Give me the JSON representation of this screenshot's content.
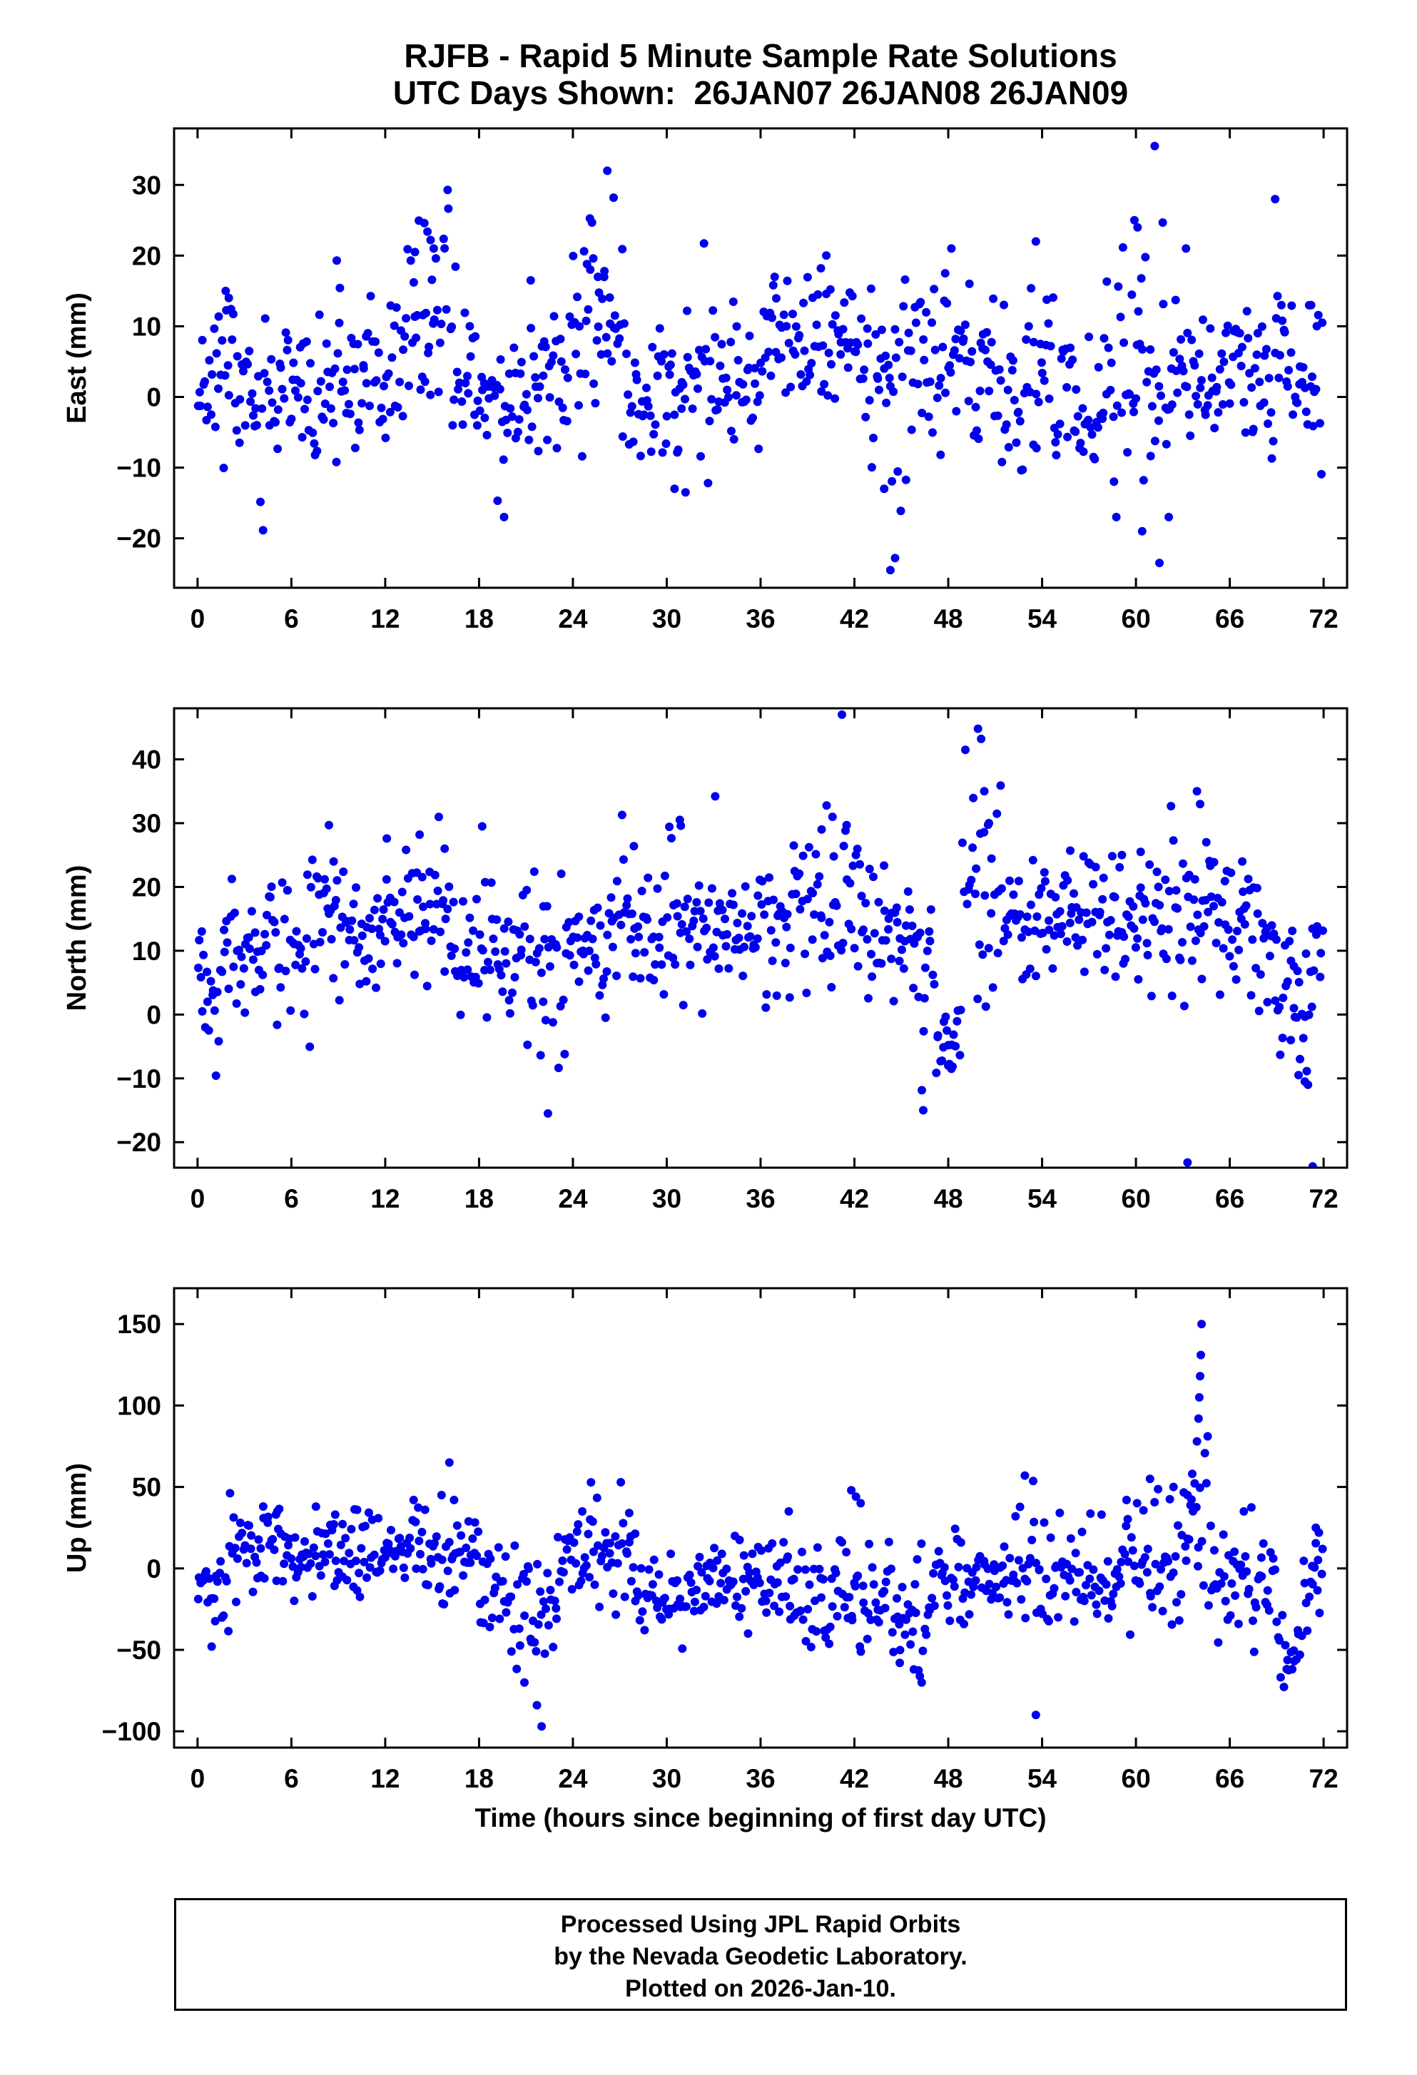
{
  "title": {
    "line1": "RJFB - Rapid 5 Minute Sample Rate Solutions",
    "line2": "UTC Days Shown:  26JAN07 26JAN08 26JAN09"
  },
  "footer": {
    "line1": "Processed Using JPL Rapid Orbits",
    "line2": "by the Nevada Geodetic Laboratory.",
    "line3": "Plotted on 2026-Jan-10."
  },
  "point_color": "#0000ee",
  "frame_color": "#000000",
  "chart_data": {
    "type": "scatter",
    "title": "RJFB - Rapid 5 Minute Sample Rate Solutions",
    "subtitle": "UTC Days Shown:  26JAN07 26JAN08 26JAN09",
    "legend": "none",
    "grid": false,
    "x_axis": {
      "label": "Time (hours since beginning of first day UTC)",
      "lim": [
        -1.5,
        73.5
      ],
      "ticks": [
        0,
        6,
        12,
        18,
        24,
        30,
        36,
        42,
        48,
        54,
        60,
        66,
        72
      ]
    },
    "panels": [
      {
        "ylabel": "East (mm)",
        "ylim": [
          -27,
          38
        ],
        "yticks": [
          -20,
          -10,
          0,
          10,
          20,
          30
        ],
        "scatter": {
          "seed": 11,
          "n": 800,
          "base": [
            2,
            5
          ],
          "segments": [
            [
              0,
              2.5,
              4,
              6
            ],
            [
              2.5,
              9,
              0,
              5
            ],
            [
              9,
              13,
              2,
              5
            ],
            [
              13,
              16.5,
              9,
              7
            ],
            [
              16.5,
              18.5,
              4,
              5
            ],
            [
              18.5,
              21.5,
              -1,
              6
            ],
            [
              21.5,
              24,
              3,
              5
            ],
            [
              24,
              27.5,
              9,
              7
            ],
            [
              27.5,
              33,
              1,
              6
            ],
            [
              33,
              36,
              2,
              5
            ],
            [
              36,
              42.5,
              7,
              5
            ],
            [
              42.5,
              45.5,
              2,
              8
            ],
            [
              45.5,
              49.5,
              7,
              6
            ],
            [
              49.5,
              56,
              2,
              6
            ],
            [
              56,
              58,
              -1,
              5
            ],
            [
              58,
              62.5,
              4,
              9
            ],
            [
              62.5,
              67,
              3,
              5
            ],
            [
              67,
              72,
              3,
              6
            ]
          ]
        },
        "outliers": [
          [
            1.8,
            15
          ],
          [
            2.0,
            14
          ],
          [
            8.9,
            19.3
          ],
          [
            13.9,
            20.5
          ],
          [
            14.5,
            24.6
          ],
          [
            14.7,
            23.4
          ],
          [
            14.9,
            22.2
          ],
          [
            15.1,
            21
          ],
          [
            19.6,
            -17
          ],
          [
            21.3,
            16.5
          ],
          [
            24.9,
            18.8
          ],
          [
            25.3,
            19.6
          ],
          [
            25.6,
            17
          ],
          [
            26.2,
            32
          ],
          [
            26.6,
            28.2
          ],
          [
            30.5,
            -13
          ],
          [
            31.2,
            -13.5
          ],
          [
            36.9,
            17
          ],
          [
            40.2,
            20
          ],
          [
            43.9,
            -13
          ],
          [
            44.3,
            -24.5
          ],
          [
            44.6,
            -22.8
          ],
          [
            47.8,
            17.5
          ],
          [
            48.2,
            21
          ],
          [
            53.6,
            22
          ],
          [
            59.9,
            25
          ],
          [
            60.1,
            24
          ],
          [
            60.4,
            -19
          ],
          [
            61.2,
            35.5
          ],
          [
            61.5,
            -23.5
          ],
          [
            62.1,
            -17
          ],
          [
            63.2,
            21
          ],
          [
            68.9,
            28
          ],
          [
            69.3,
            13
          ],
          [
            71.2,
            13
          ]
        ]
      },
      {
        "ylabel": "North (mm)",
        "ylim": [
          -24,
          48
        ],
        "yticks": [
          -20,
          -10,
          0,
          10,
          20,
          30,
          40
        ],
        "scatter": {
          "seed": 22,
          "n": 800,
          "base": [
            12,
            5
          ],
          "segments": [
            [
              0,
              1.5,
              6,
              5
            ],
            [
              1.5,
              7,
              11,
              5
            ],
            [
              7,
              9.5,
              15,
              6
            ],
            [
              9.5,
              13,
              12,
              4
            ],
            [
              13,
              16.5,
              15,
              6
            ],
            [
              16.5,
              21,
              11,
              5
            ],
            [
              21,
              23.5,
              8,
              7
            ],
            [
              23.5,
              27,
              12,
              5
            ],
            [
              27,
              29.5,
              14,
              6
            ],
            [
              29.5,
              38,
              13,
              5
            ],
            [
              38,
              42.5,
              19,
              6
            ],
            [
              42.5,
              46,
              13,
              5
            ],
            [
              46,
              47.2,
              8,
              6
            ],
            [
              47.2,
              48.8,
              -4,
              3
            ],
            [
              48.8,
              51.5,
              20,
              9
            ],
            [
              51.5,
              55,
              14,
              5
            ],
            [
              55,
              60,
              16,
              5
            ],
            [
              60,
              62,
              12,
              6
            ],
            [
              62,
              65.5,
              17,
              7
            ],
            [
              65.5,
              69,
              13,
              5
            ],
            [
              69,
              71.5,
              4,
              7
            ],
            [
              71.5,
              72,
              10,
              4
            ]
          ]
        },
        "outliers": [
          [
            0.3,
            0.5
          ],
          [
            8.4,
            29.7
          ],
          [
            8.7,
            24
          ],
          [
            12.1,
            27.6
          ],
          [
            14.2,
            28.2
          ],
          [
            15.8,
            26
          ],
          [
            18.2,
            29.5
          ],
          [
            22.1,
            2
          ],
          [
            22.4,
            -15.5
          ],
          [
            27.9,
            26.4
          ],
          [
            30.9,
            29.6
          ],
          [
            33.1,
            34.2
          ],
          [
            39.9,
            29
          ],
          [
            40.6,
            31
          ],
          [
            41.2,
            47
          ],
          [
            41.5,
            29.7
          ],
          [
            46.4,
            -15
          ],
          [
            48.0,
            -8
          ],
          [
            48.2,
            -8.5
          ],
          [
            49.9,
            44.8
          ],
          [
            50.1,
            43.2
          ],
          [
            50.3,
            35
          ],
          [
            50.6,
            30
          ],
          [
            55.8,
            25.7
          ],
          [
            59.1,
            25
          ],
          [
            60.3,
            25.5
          ],
          [
            63.3,
            -23.2
          ],
          [
            63.9,
            35
          ],
          [
            64.1,
            33
          ],
          [
            64.5,
            27
          ],
          [
            66.8,
            24
          ],
          [
            69.9,
            -4
          ],
          [
            70.1,
            1
          ],
          [
            70.4,
            -9.5
          ],
          [
            70.8,
            -10.5
          ],
          [
            71.0,
            -11
          ],
          [
            71.3,
            -23.8
          ]
        ]
      },
      {
        "ylabel": "Up (mm)",
        "ylim": [
          -110,
          172
        ],
        "yticks": [
          -100,
          -50,
          0,
          50,
          100,
          150
        ],
        "scatter": {
          "seed": 33,
          "n": 800,
          "base": [
            -5,
            16
          ],
          "segments": [
            [
              0,
              2,
              -12,
              12
            ],
            [
              2,
              6,
              12,
              14
            ],
            [
              6,
              12,
              8,
              13
            ],
            [
              12,
              15,
              8,
              15
            ],
            [
              15,
              18,
              2,
              16
            ],
            [
              18,
              19.5,
              -10,
              15
            ],
            [
              19.5,
              23,
              -28,
              20
            ],
            [
              23,
              26,
              2,
              16
            ],
            [
              26,
              28,
              8,
              15
            ],
            [
              28,
              31.5,
              -18,
              14
            ],
            [
              31.5,
              38,
              -8,
              14
            ],
            [
              38,
              40,
              -12,
              14
            ],
            [
              40,
              43,
              -15,
              18
            ],
            [
              43,
              47,
              -25,
              18
            ],
            [
              47,
              52,
              -8,
              16
            ],
            [
              52,
              56,
              -4,
              18
            ],
            [
              56,
              59,
              -8,
              15
            ],
            [
              59,
              63,
              5,
              18
            ],
            [
              63,
              64.6,
              25,
              25
            ],
            [
              64.6,
              68.9,
              -5,
              15
            ],
            [
              68.9,
              70.7,
              -52,
              12
            ],
            [
              70.7,
              72,
              -5,
              14
            ]
          ]
        },
        "outliers": [
          [
            0.9,
            -48
          ],
          [
            4.2,
            38
          ],
          [
            5.1,
            35
          ],
          [
            8.8,
            33
          ],
          [
            10.2,
            36
          ],
          [
            15.6,
            45
          ],
          [
            16.1,
            65
          ],
          [
            16.4,
            42
          ],
          [
            20.9,
            -70
          ],
          [
            21.7,
            -84
          ],
          [
            22.0,
            -97
          ],
          [
            24.6,
            35
          ],
          [
            25.1,
            30
          ],
          [
            27.6,
            34
          ],
          [
            35.2,
            -40
          ],
          [
            37.8,
            35
          ],
          [
            41.8,
            48
          ],
          [
            42.1,
            44
          ],
          [
            42.4,
            40
          ],
          [
            44.9,
            -58
          ],
          [
            45.8,
            -62
          ],
          [
            46.3,
            -70
          ],
          [
            52.9,
            57
          ],
          [
            53.6,
            -90
          ],
          [
            57.8,
            33
          ],
          [
            59.4,
            42
          ],
          [
            60.9,
            55
          ],
          [
            62.4,
            50
          ],
          [
            63.3,
            45
          ],
          [
            63.6,
            58
          ],
          [
            63.9,
            78
          ],
          [
            64.0,
            92
          ],
          [
            64.05,
            105
          ],
          [
            64.1,
            118
          ],
          [
            64.15,
            131
          ],
          [
            64.2,
            150
          ],
          [
            66.9,
            35
          ],
          [
            71.5,
            25
          ],
          [
            71.7,
            22
          ]
        ]
      }
    ]
  }
}
